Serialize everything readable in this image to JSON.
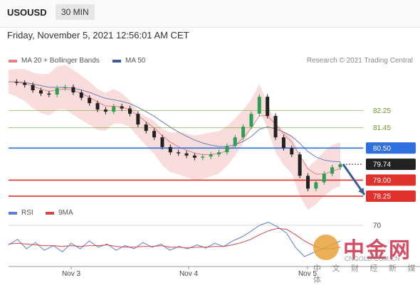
{
  "header": {
    "symbol": "USOUSD",
    "timeframe": "30 MIN"
  },
  "datetime": "Friday, November 5, 2021 12:56:01 AM CET",
  "legend": {
    "ma20": {
      "label": "MA 20 + Bollinger Bands",
      "color": "#e88080"
    },
    "ma50": {
      "label": "MA 50",
      "color": "#3c5a99"
    },
    "copyright": "Research © 2021 Trading Central"
  },
  "rsi_legend": {
    "rsi": {
      "label": "RSI",
      "color": "#5b7fd6"
    },
    "ma9": {
      "label": "9MA",
      "color": "#d64545"
    }
  },
  "watermark": {
    "text": "中金网",
    "sub": "中 文 财 经 新 媒 体",
    "url": "CNGOLD.COM.CN"
  },
  "chart_data": [
    {
      "type": "candlestick",
      "ylim": [
        77.85,
        84.1
      ],
      "x_ticks": [
        "Nov 3",
        "Nov 4",
        "Nov 5"
      ],
      "levels": [
        {
          "value": 82.25,
          "label": "82.25",
          "kind": "resistance-minor",
          "color": "#6b9c2a"
        },
        {
          "value": 81.45,
          "label": "81.45",
          "kind": "resistance-minor",
          "color": "#6b9c2a"
        },
        {
          "value": 80.5,
          "label": "80.50",
          "kind": "pivot",
          "color": "#2f6fe0"
        },
        {
          "value": 79.74,
          "label": "79.74",
          "kind": "current",
          "color": "#222222"
        },
        {
          "value": 79.0,
          "label": "79.00",
          "kind": "support",
          "color": "#e0322c"
        },
        {
          "value": 78.25,
          "label": "78.25",
          "kind": "support",
          "color": "#e0322c"
        }
      ],
      "price_path": [
        83.6,
        83.55,
        83.45,
        83.2,
        83.05,
        83.0,
        83.3,
        83.35,
        83.1,
        82.85,
        82.6,
        82.3,
        82.2,
        82.45,
        82.35,
        82.1,
        81.6,
        81.3,
        81.0,
        80.55,
        80.3,
        80.25,
        80.15,
        80.05,
        80.1,
        80.2,
        80.3,
        80.6,
        81.0,
        81.5,
        82.1,
        82.9,
        82.0,
        81.0,
        80.5,
        80.2,
        79.2,
        78.6,
        78.9,
        79.3,
        79.6,
        79.74
      ],
      "projection": {
        "from": 79.74,
        "to": 78.25
      }
    },
    {
      "type": "line",
      "series": [
        {
          "name": "RSI",
          "values": [
            45,
            52,
            40,
            48,
            38,
            44,
            36,
            47,
            40,
            50,
            42,
            46,
            38,
            44,
            40,
            48,
            42,
            46,
            38,
            43,
            40,
            45,
            41,
            47,
            43,
            50,
            55,
            62,
            70,
            74,
            68,
            60,
            42,
            30,
            35,
            40,
            45,
            50
          ]
        },
        {
          "name": "9MA",
          "values": [
            46,
            47,
            46,
            45,
            44,
            44,
            43,
            44,
            43,
            44,
            44,
            45,
            43,
            42,
            42,
            43,
            43,
            44,
            42,
            42,
            41,
            42,
            42,
            43,
            43,
            45,
            48,
            52,
            58,
            63,
            66,
            65,
            58,
            50,
            44,
            40,
            40,
            42
          ]
        }
      ],
      "ylim": [
        20,
        80
      ],
      "y_ticks": [
        70
      ]
    }
  ]
}
